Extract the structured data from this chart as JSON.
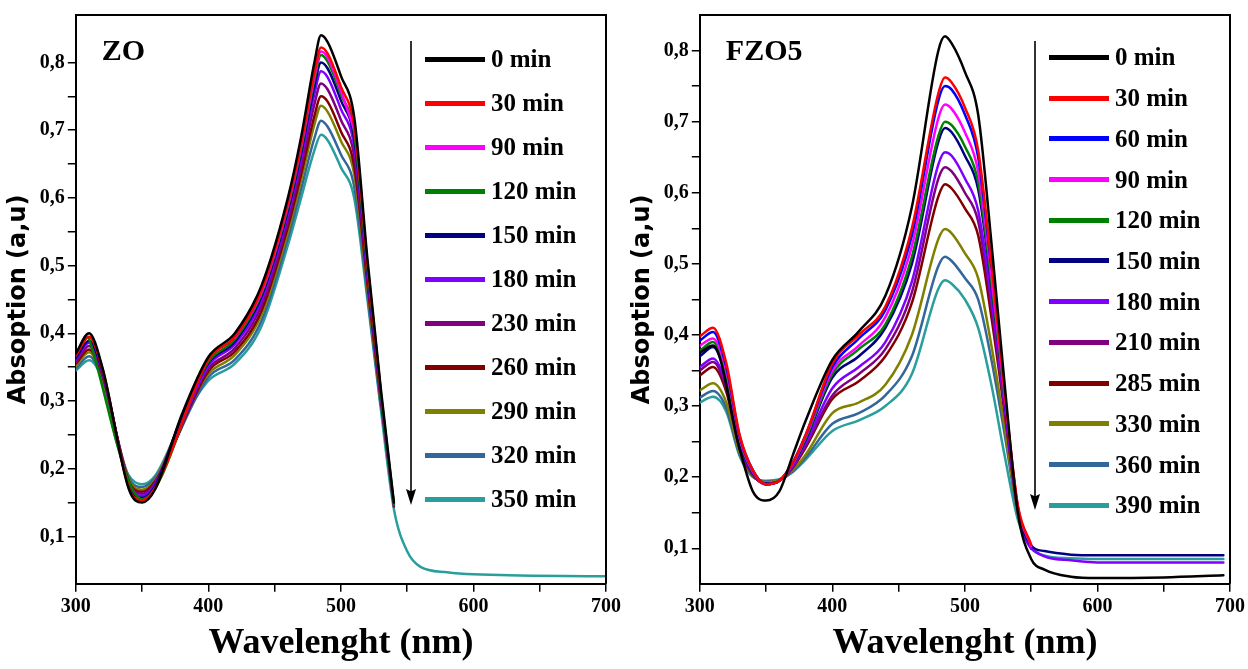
{
  "chart_data": [
    {
      "type": "line",
      "title": "ZO",
      "xlabel": "Wavelenght (nm)",
      "ylabel": "Absoption (a,u)",
      "legend": "top right",
      "marker": "none",
      "line_style": "solid",
      "x": [
        300,
        310,
        320,
        330,
        340,
        350,
        360,
        380,
        400,
        420,
        440,
        460,
        470,
        480,
        485,
        490,
        500,
        510,
        520,
        530,
        540,
        550,
        560,
        580,
        600,
        700
      ],
      "xlim": [
        300,
        700
      ],
      "xticks": [
        300,
        {
          "value": 350,
          "label": null
        },
        400,
        {
          "value": 450,
          "label": null
        },
        500,
        {
          "value": 550,
          "label": null
        },
        600,
        {
          "value": 650,
          "label": null
        },
        700
      ],
      "ylim": [
        0.03,
        0.87
      ],
      "yticks": [
        {
          "value": 0.1,
          "label": "0,1"
        },
        {
          "value": 0.15,
          "label": null
        },
        {
          "value": 0.2,
          "label": "0,2"
        },
        {
          "value": 0.25,
          "label": null
        },
        {
          "value": 0.3,
          "label": "0,3"
        },
        {
          "value": 0.35,
          "label": null
        },
        {
          "value": 0.4,
          "label": "0,4"
        },
        {
          "value": 0.45,
          "label": null
        },
        {
          "value": 0.5,
          "label": "0,5"
        },
        {
          "value": 0.55,
          "label": null
        },
        {
          "value": 0.6,
          "label": "0,6"
        },
        {
          "value": 0.65,
          "label": null
        },
        {
          "value": 0.7,
          "label": "0,7"
        },
        {
          "value": 0.75,
          "label": null
        },
        {
          "value": 0.8,
          "label": "0,8"
        }
      ],
      "series": [
        {
          "name": "0 min",
          "color": "#000000",
          "values": [
            0.37,
            0.4,
            0.35,
            null,
            0.17,
            0.15,
            0.17,
            0.28,
            0.365,
            0.4,
            0.47,
            0.6,
            0.69,
            0.8,
            0.84,
            0.83,
            0.78,
            0.72,
            0.51,
            0.32,
            0.15,
            null,
            null,
            null,
            null,
            null
          ]
        },
        {
          "name": "30 min",
          "color": "#ff0000",
          "values": [
            0.367,
            0.395,
            0.348,
            null,
            0.172,
            0.153,
            0.172,
            null,
            0.361,
            0.395,
            0.463,
            0.592,
            0.679,
            0.784,
            0.822,
            0.813,
            0.764,
            0.706,
            0.503,
            0.316,
            null,
            null,
            null,
            null,
            null,
            null
          ]
        },
        {
          "name": "90 min",
          "color": "#ff00ff",
          "values": [
            null,
            null,
            null,
            null,
            null,
            null,
            null,
            null,
            null,
            0.393,
            0.46,
            0.589,
            0.676,
            0.779,
            0.816,
            0.807,
            0.758,
            0.701,
            null,
            null,
            null,
            null,
            null,
            null,
            null,
            null
          ]
        },
        {
          "name": "120 min",
          "color": "#008000",
          "values": [
            null,
            0.392,
            null,
            null,
            null,
            0.155,
            null,
            null,
            0.358,
            0.391,
            0.458,
            0.586,
            0.672,
            0.774,
            0.811,
            0.801,
            0.753,
            0.696,
            0.498,
            0.314,
            0.148,
            null,
            null,
            null,
            null,
            null
          ]
        },
        {
          "name": "150 min",
          "color": "#000080",
          "values": [
            0.363,
            0.389,
            0.345,
            null,
            0.175,
            0.157,
            0.175,
            0.277,
            0.356,
            0.388,
            0.454,
            0.581,
            0.666,
            0.765,
            0.8,
            0.791,
            0.744,
            0.688,
            0.494,
            0.312,
            null,
            null,
            null,
            null,
            null,
            null
          ]
        },
        {
          "name": "180 min",
          "color": "#8000ff",
          "values": [
            0.361,
            0.386,
            0.343,
            null,
            0.177,
            0.16,
            0.177,
            null,
            0.352,
            0.384,
            0.448,
            0.575,
            0.658,
            0.753,
            0.787,
            0.778,
            0.731,
            0.677,
            0.488,
            0.309,
            0.146,
            null,
            null,
            null,
            null,
            null
          ]
        },
        {
          "name": "230 min",
          "color": "#800080",
          "values": [
            0.358,
            0.381,
            0.34,
            null,
            0.18,
            0.163,
            0.18,
            0.275,
            0.348,
            0.378,
            0.441,
            0.566,
            0.647,
            0.738,
            0.769,
            0.76,
            0.715,
            0.662,
            0.481,
            0.306,
            null,
            null,
            null,
            null,
            null,
            null
          ]
        },
        {
          "name": "260 min",
          "color": "#800000",
          "values": [
            0.355,
            0.376,
            0.338,
            null,
            0.182,
            0.166,
            0.182,
            null,
            0.344,
            0.373,
            0.433,
            0.557,
            0.635,
            0.721,
            0.75,
            0.742,
            0.698,
            0.647,
            0.473,
            0.302,
            0.144,
            null,
            null,
            null,
            null,
            null
          ]
        },
        {
          "name": "290 min",
          "color": "#808000",
          "values": [
            0.352,
            0.372,
            0.336,
            null,
            0.184,
            0.169,
            0.184,
            0.273,
            0.34,
            0.368,
            0.427,
            0.55,
            0.626,
            0.708,
            0.736,
            0.727,
            0.684,
            0.635,
            0.467,
            0.299,
            null,
            null,
            null,
            null,
            null,
            null
          ]
        },
        {
          "name": "320 min",
          "color": "#336699",
          "values": [
            0.348,
            0.366,
            0.333,
            null,
            0.187,
            0.173,
            0.187,
            null,
            0.335,
            0.361,
            0.418,
            0.54,
            0.613,
            0.688,
            0.714,
            0.705,
            0.664,
            0.617,
            0.458,
            0.294,
            null,
            null,
            null,
            null,
            null,
            null
          ]
        },
        {
          "name": "350 min",
          "color": "#2a9d9d",
          "values": [
            0.345,
            0.36,
            0.33,
            0.245,
            0.19,
            0.177,
            0.19,
            0.27,
            0.33,
            0.355,
            0.41,
            0.53,
            0.6,
            0.67,
            0.693,
            0.685,
            0.645,
            0.6,
            0.45,
            0.29,
            0.14,
            0.078,
            0.055,
            0.047,
            0.044,
            0.041
          ]
        }
      ]
    },
    {
      "type": "line",
      "title": "FZO5",
      "xlabel": "Wavelenght (nm)",
      "ylabel": "Absoption (a,u)",
      "legend": "top right",
      "marker": "none",
      "line_style": "solid",
      "x": [
        300,
        310,
        320,
        330,
        340,
        350,
        360,
        370,
        380,
        400,
        420,
        440,
        460,
        480,
        485,
        490,
        500,
        510,
        520,
        530,
        540,
        550,
        560,
        580,
        600,
        650,
        695
      ],
      "xlim": [
        300,
        700
      ],
      "xticks": [
        300,
        {
          "value": 350,
          "label": null
        },
        400,
        {
          "value": 450,
          "label": null
        },
        500,
        {
          "value": 550,
          "label": null
        },
        600,
        {
          "value": 650,
          "label": null
        },
        700
      ],
      "ylim": [
        0.05,
        0.85
      ],
      "yticks": [
        {
          "value": 0.1,
          "label": "0,1"
        },
        {
          "value": 0.15,
          "label": null
        },
        {
          "value": 0.2,
          "label": "0,2"
        },
        {
          "value": 0.25,
          "label": null
        },
        {
          "value": 0.3,
          "label": "0,3"
        },
        {
          "value": 0.35,
          "label": null
        },
        {
          "value": 0.4,
          "label": "0,4"
        },
        {
          "value": 0.45,
          "label": null
        },
        {
          "value": 0.5,
          "label": "0,5"
        },
        {
          "value": 0.55,
          "label": null
        },
        {
          "value": 0.6,
          "label": "0,6"
        },
        {
          "value": 0.65,
          "label": null
        },
        {
          "value": 0.7,
          "label": "0,7"
        },
        {
          "value": 0.75,
          "label": null
        },
        {
          "value": 0.8,
          "label": "0,8"
        }
      ],
      "series": [
        {
          "name": "0 min",
          "color": "#000000",
          "values": [
            0.375,
            0.385,
            null,
            0.24,
            0.18,
            0.167,
            0.18,
            0.23,
            0.28,
            0.365,
            0.405,
            0.455,
            0.58,
            0.8,
            0.82,
            0.81,
            0.77,
            0.71,
            0.53,
            0.33,
            0.15,
            0.085,
            0.07,
            0.06,
            0.058,
            0.059,
            0.062
          ]
        },
        {
          "name": "30 min",
          "color": "#ff0000",
          "values": [
            0.398,
            0.41,
            0.36,
            0.26,
            0.21,
            0.19,
            0.195,
            0.22,
            0.26,
            0.36,
            0.4,
            0.44,
            0.55,
            0.74,
            0.762,
            0.755,
            0.72,
            0.66,
            0.5,
            0.32,
            0.16,
            0.105,
            null,
            null,
            null,
            null,
            null
          ]
        },
        {
          "name": "60 min",
          "color": "#0000ff",
          "values": [
            0.392,
            0.404,
            0.355,
            0.258,
            0.21,
            0.19,
            0.195,
            0.22,
            0.26,
            0.355,
            0.395,
            0.435,
            0.54,
            0.73,
            0.75,
            0.745,
            0.71,
            0.65,
            0.495,
            null,
            null,
            null,
            null,
            null,
            null,
            null,
            null
          ]
        },
        {
          "name": "90 min",
          "color": "#ff00ff",
          "values": [
            0.385,
            0.395,
            0.35,
            0.255,
            0.208,
            0.19,
            0.195,
            0.218,
            0.258,
            0.35,
            0.385,
            0.425,
            0.525,
            0.705,
            0.724,
            0.718,
            0.685,
            0.63,
            0.485,
            0.315,
            0.158,
            0.103,
            null,
            null,
            null,
            null,
            null
          ]
        },
        {
          "name": "120 min",
          "color": "#008000",
          "values": [
            0.378,
            0.39,
            0.345,
            0.253,
            0.207,
            0.19,
            0.195,
            0.218,
            0.255,
            0.345,
            0.38,
            0.415,
            0.51,
            0.68,
            0.7,
            0.695,
            0.665,
            0.615,
            0.475,
            0.31,
            null,
            null,
            null,
            null,
            null,
            null,
            null
          ]
        },
        {
          "name": "150 min",
          "color": "#000080",
          "values": [
            0.37,
            0.383,
            0.34,
            0.25,
            0.206,
            0.191,
            0.195,
            0.217,
            0.253,
            0.34,
            0.37,
            0.41,
            0.5,
            0.672,
            0.691,
            0.685,
            0.652,
            0.605,
            0.47,
            0.31,
            0.157,
            0.104,
            0.096,
            0.091,
            0.09,
            0.09,
            0.09
          ]
        },
        {
          "name": "180 min",
          "color": "#8000ff",
          "values": [
            0.355,
            0.367,
            0.33,
            0.245,
            0.205,
            0.19,
            0.195,
            0.215,
            0.248,
            0.325,
            0.355,
            0.39,
            0.475,
            0.64,
            0.657,
            0.652,
            0.62,
            0.575,
            0.45,
            0.3,
            0.155,
            0.1,
            null,
            0.083,
            0.08,
            0.08,
            0.08
          ]
        },
        {
          "name": "210 min",
          "color": "#800080",
          "values": [
            0.35,
            0.362,
            0.325,
            0.243,
            0.204,
            0.19,
            0.195,
            0.214,
            0.245,
            0.315,
            0.345,
            0.38,
            0.46,
            0.62,
            0.636,
            0.63,
            0.6,
            0.56,
            0.44,
            0.295,
            0.154,
            0.1,
            null,
            null,
            null,
            null,
            null
          ]
        },
        {
          "name": "285 min",
          "color": "#800000",
          "values": [
            0.343,
            0.355,
            0.32,
            0.24,
            0.203,
            0.191,
            0.195,
            0.213,
            0.242,
            0.31,
            0.335,
            0.37,
            0.445,
            0.595,
            0.612,
            0.606,
            0.578,
            0.54,
            0.425,
            0.29,
            0.153,
            0.1,
            null,
            null,
            null,
            null,
            null
          ]
        },
        {
          "name": "330 min",
          "color": "#808000",
          "values": [
            0.322,
            0.332,
            0.305,
            0.235,
            0.202,
            0.193,
            0.196,
            0.21,
            0.232,
            0.29,
            0.305,
            0.33,
            0.4,
            0.535,
            0.549,
            0.543,
            0.515,
            0.48,
            0.385,
            0.27,
            0.15,
            0.1,
            null,
            null,
            null,
            null,
            null
          ]
        },
        {
          "name": "360 min",
          "color": "#336699",
          "values": [
            0.312,
            0.321,
            0.297,
            0.232,
            0.201,
            0.194,
            0.196,
            0.208,
            0.228,
            0.275,
            0.29,
            0.315,
            0.37,
            0.497,
            0.51,
            0.504,
            0.48,
            0.45,
            0.365,
            0.26,
            0.148,
            0.1,
            null,
            null,
            null,
            null,
            null
          ]
        },
        {
          "name": "390 min",
          "color": "#2a9d9d",
          "values": [
            0.305,
            0.313,
            0.292,
            0.23,
            0.2,
            0.195,
            0.197,
            0.207,
            0.225,
            0.265,
            0.28,
            0.3,
            0.345,
            0.465,
            0.477,
            0.472,
            0.45,
            0.41,
            0.33,
            0.23,
            0.14,
            0.1,
            0.09,
            0.086,
            0.085,
            0.085,
            0.085
          ]
        }
      ]
    }
  ]
}
